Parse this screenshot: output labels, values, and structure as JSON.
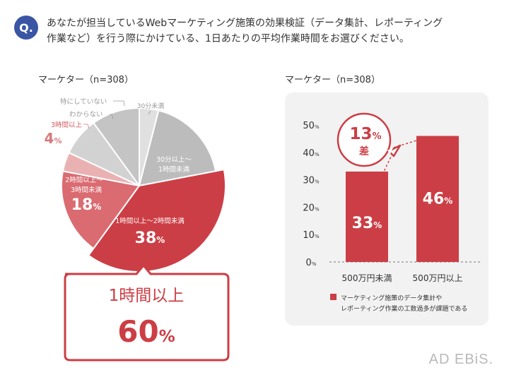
{
  "question": {
    "badge": "Q.",
    "line1": "あなたが担当しているWebマーケティング施策の効果検証（データ集計、レポーティング",
    "line2": "作業など）を行う際にかけている、1日あたりの平均作業時間をお選びください。"
  },
  "brand": "AD EBiS.",
  "chart_data": [
    {
      "type": "pie",
      "title": "マーケター（n=308）",
      "slices": [
        {
          "label": "30分未満",
          "value": 4,
          "value_label": "",
          "color": "#e0e0e0"
        },
        {
          "label": "30分以上～1時間未満",
          "label_lines": [
            "30分以上～",
            "1時間未満"
          ],
          "value": 18,
          "value_label": "",
          "color": "#bcbcbc"
        },
        {
          "label": "1時間以上～2時間未満",
          "value": 38,
          "value_label": "38%",
          "color": "#cc3e45"
        },
        {
          "label": "2時間以上～3時間未満",
          "label_lines": [
            "2時間以上～",
            "3時間未満"
          ],
          "value": 18,
          "value_label": "18%",
          "color": "#da6b71"
        },
        {
          "label": "3時間以上",
          "value": 4,
          "value_label": "4%",
          "color": "#eab1b3"
        },
        {
          "label": "わからない",
          "value": 8,
          "value_label": "",
          "color": "#d2d2d2"
        },
        {
          "label": "特にしていない",
          "value": 10,
          "value_label": "",
          "color": "#c4c4c4"
        }
      ],
      "callout": {
        "label": "1時間以上",
        "value": 60,
        "value_text": "60",
        "unit": "%"
      }
    },
    {
      "type": "bar",
      "title": "マーケター（n=308）",
      "categories": [
        "500万円未満",
        "500万円以上"
      ],
      "series": [
        {
          "name": "マーケティング施策のデータ集計やレポーティング作業の工数過多が課題である",
          "values": [
            33,
            46
          ],
          "color": "#cc3e45"
        }
      ],
      "ylim": [
        0,
        50
      ],
      "yticks": [
        0,
        10,
        20,
        30,
        40,
        50
      ],
      "tick_unit": "%",
      "value_unit": "%",
      "difference": {
        "value": "13",
        "unit": "%",
        "label": "差"
      },
      "legend": {
        "line1": "マーケティング施策のデータ集計や",
        "line2": "レポーティング作業の工数過多が課題である",
        "position": "bottom"
      }
    }
  ]
}
